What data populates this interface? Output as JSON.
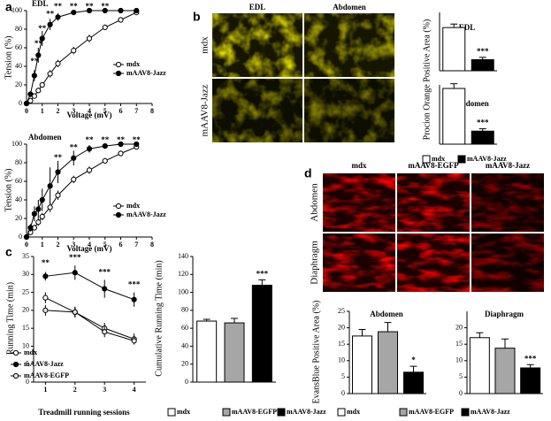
{
  "panel_labels": [
    "a",
    "b",
    "c",
    "d"
  ],
  "images": {
    "b": {
      "columns": [
        "EDL",
        "Abdomen"
      ],
      "rows": [
        "mdx",
        "mAAV8-Jazz"
      ]
    },
    "d": {
      "columns": [
        "mdx",
        "mAAV8-EGFP",
        "mAAV8-Jazz"
      ],
      "rows": [
        "Abdomen",
        "Diaphragm"
      ]
    }
  },
  "chart_data": [
    {
      "type": "line",
      "title": "EDL",
      "xlabel": "Voltage (mV)",
      "ylabel": "Tension (%)",
      "x": [
        0,
        0.25,
        0.5,
        0.75,
        1,
        1.5,
        2,
        3,
        4,
        5,
        6,
        7
      ],
      "xlim": [
        0,
        8
      ],
      "xticks": [
        0,
        1,
        2,
        3,
        4,
        5,
        6,
        7,
        8
      ],
      "ylim": [
        0,
        100
      ],
      "yticks": [
        0,
        20,
        40,
        60,
        80,
        100
      ],
      "series": [
        {
          "name": "mdx",
          "color": "#ffffff",
          "values": [
            0,
            3,
            8,
            14,
            20,
            32,
            43,
            57,
            70,
            82,
            90,
            98
          ],
          "errors": [
            0,
            1,
            2,
            3,
            3,
            4,
            4,
            4,
            4,
            3,
            3,
            2
          ]
        },
        {
          "name": "mAAV8-Jazz",
          "color": "#000000",
          "values": [
            0,
            10,
            30,
            52,
            70,
            85,
            93,
            98,
            100,
            100,
            100,
            100
          ],
          "errors": [
            0,
            3,
            6,
            8,
            8,
            6,
            4,
            2,
            1,
            1,
            1,
            1
          ]
        }
      ],
      "annotations": [
        {
          "text": "**",
          "x": 0.5,
          "y": 45
        },
        {
          "text": "**",
          "x": 0.75,
          "y": 64
        },
        {
          "text": "**",
          "x": 1,
          "y": 80
        },
        {
          "text": "**",
          "x": 1.5,
          "y": 96
        },
        {
          "text": "**",
          "x": 2,
          "y": 104
        },
        {
          "text": "**",
          "x": 3,
          "y": 104
        },
        {
          "text": "**",
          "x": 4,
          "y": 104
        },
        {
          "text": "**",
          "x": 5,
          "y": 104
        }
      ]
    },
    {
      "type": "line",
      "title": "Abdomen",
      "xlabel": "Voltage (mV)",
      "ylabel": "Tension (%)",
      "x": [
        0,
        0.25,
        0.5,
        0.75,
        1,
        1.5,
        2,
        3,
        4,
        5,
        6,
        7
      ],
      "xlim": [
        0,
        8
      ],
      "xticks": [
        0,
        1,
        2,
        3,
        4,
        5,
        6,
        7,
        8
      ],
      "ylim": [
        0,
        100
      ],
      "yticks": [
        0,
        20,
        40,
        60,
        80,
        100
      ],
      "series": [
        {
          "name": "mdx",
          "color": "#ffffff",
          "values": [
            0,
            5,
            10,
            16,
            22,
            32,
            45,
            62,
            72,
            82,
            90,
            97
          ],
          "errors": [
            0,
            2,
            3,
            4,
            4,
            5,
            5,
            4,
            4,
            3,
            3,
            2
          ]
        },
        {
          "name": "mAAV8-Jazz",
          "color": "#000000",
          "values": [
            0,
            10,
            25,
            30,
            40,
            55,
            70,
            85,
            95,
            98,
            100,
            100
          ],
          "errors": [
            0,
            4,
            8,
            10,
            12,
            20,
            12,
            8,
            4,
            3,
            2,
            1
          ]
        }
      ],
      "annotations": [
        {
          "text": "**",
          "x": 2,
          "y": 85
        },
        {
          "text": "**",
          "x": 3,
          "y": 96
        },
        {
          "text": "**",
          "x": 4,
          "y": 104
        },
        {
          "text": "**",
          "x": 5,
          "y": 104
        },
        {
          "text": "**",
          "x": 6,
          "y": 104
        },
        {
          "text": "**",
          "x": 7,
          "y": 104
        }
      ]
    },
    {
      "type": "line",
      "xlabel": "Treadmill running sessions",
      "ylabel": "Running Time (min)",
      "x": [
        1,
        2,
        3,
        4
      ],
      "xlim": [
        0.6,
        4.4
      ],
      "xticks": [
        1,
        2,
        3,
        4
      ],
      "ylim": [
        0,
        35
      ],
      "yticks": [
        0,
        5,
        10,
        15,
        20,
        25,
        30,
        35
      ],
      "series": [
        {
          "name": "mdx",
          "color": "#ffffff",
          "values": [
            23.5,
            19.5,
            15,
            12
          ],
          "errors": [
            1.5,
            1.5,
            1.5,
            1.5
          ]
        },
        {
          "name": "mAAV8-Jazz",
          "color": "#000000",
          "values": [
            29.5,
            30.5,
            26,
            23
          ],
          "errors": [
            1.2,
            2,
            2.5,
            2
          ]
        },
        {
          "name": "mAAV8-EGFP",
          "color": "#e6e6e6",
          "values": [
            20,
            19.5,
            14,
            11.5
          ],
          "errors": [
            1.5,
            1.5,
            1.5,
            1
          ]
        }
      ],
      "annotations": [
        {
          "text": "**",
          "x": 1,
          "y": 33
        },
        {
          "text": "***",
          "x": 2,
          "y": 34.5
        },
        {
          "text": "***",
          "x": 3,
          "y": 30.5
        },
        {
          "text": "***",
          "x": 4,
          "y": 27
        }
      ]
    },
    {
      "type": "bar",
      "ylabel": "Cumulative Running Time (min)",
      "ylim": [
        0,
        140
      ],
      "yticks": [
        0,
        20,
        40,
        60,
        80,
        100,
        120,
        140
      ],
      "series": [
        {
          "name": "mdx",
          "color": "#ffffff",
          "values": [
            68
          ],
          "errors": [
            2
          ]
        },
        {
          "name": "mAAV8-EGFP",
          "color": "#a6a6a6",
          "values": [
            66
          ],
          "errors": [
            5
          ]
        },
        {
          "name": "mAAV8-Jazz",
          "color": "#000000",
          "values": [
            108
          ],
          "errors": [
            6
          ]
        }
      ],
      "annotations": [
        {
          "text": "***",
          "series": 2
        }
      ]
    },
    {
      "type": "bar",
      "title": "EDL",
      "ylabel": "Procion Orange Positive Area (%)",
      "ylim": [
        0,
        50
      ],
      "series": [
        {
          "name": "mdx",
          "color": "#ffffff",
          "values": [
            37
          ],
          "errors": [
            3
          ]
        },
        {
          "name": "mAAV8-Jazz",
          "color": "#000000",
          "values": [
            9.5
          ],
          "errors": [
            2
          ]
        }
      ],
      "annotations": [
        {
          "text": "***",
          "series": 1
        }
      ]
    },
    {
      "type": "bar",
      "title": "Abdomen",
      "ylim": [
        0,
        50
      ],
      "series": [
        {
          "name": "mdx",
          "color": "#ffffff",
          "values": [
            47
          ],
          "errors": [
            4
          ]
        },
        {
          "name": "mAAV8-Jazz",
          "color": "#000000",
          "values": [
            11
          ],
          "errors": [
            2
          ]
        }
      ],
      "annotations": [
        {
          "text": "***",
          "series": 1
        }
      ]
    },
    {
      "type": "bar",
      "title": "Abdomen",
      "ylabel": "EvansBlue Positive Area (%)",
      "ylim": [
        0,
        25
      ],
      "yticks": [
        0,
        5,
        10,
        15,
        20,
        25
      ],
      "series": [
        {
          "name": "mdx",
          "color": "#ffffff",
          "values": [
            17.5
          ],
          "errors": [
            2
          ]
        },
        {
          "name": "mAAV8-EGFP",
          "color": "#a6a6a6",
          "values": [
            18.8
          ],
          "errors": [
            2.8
          ]
        },
        {
          "name": "mAAV8-Jazz",
          "color": "#000000",
          "values": [
            6.5
          ],
          "errors": [
            1.8
          ]
        }
      ],
      "annotations": [
        {
          "text": "*",
          "series": 2
        }
      ]
    },
    {
      "type": "bar",
      "title": "Diaphragm",
      "ylim": [
        0,
        25
      ],
      "yticks": [
        0,
        5,
        10,
        15,
        20
      ],
      "series": [
        {
          "name": "mdx",
          "color": "#ffffff",
          "values": [
            17
          ],
          "errors": [
            1.5
          ]
        },
        {
          "name": "mAAV8-EGFP",
          "color": "#a6a6a6",
          "values": [
            13.8
          ],
          "errors": [
            2.8
          ]
        },
        {
          "name": "mAAV8-Jazz",
          "color": "#000000",
          "values": [
            7.8
          ],
          "errors": [
            1
          ]
        }
      ],
      "annotations": [
        {
          "text": "***",
          "series": 2
        }
      ]
    }
  ]
}
